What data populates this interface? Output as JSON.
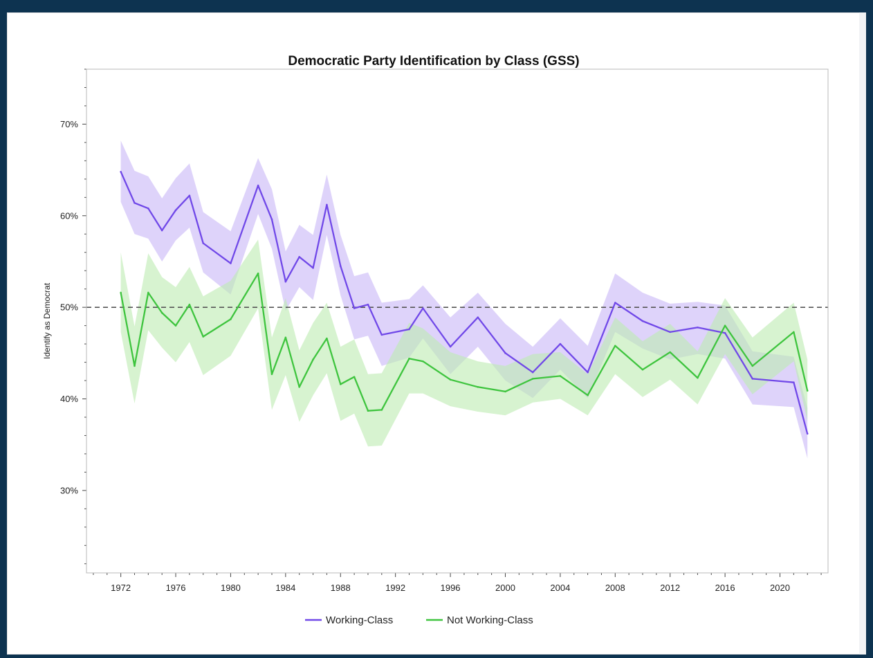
{
  "chart_data": {
    "type": "line",
    "title": "Democratic Party Identification by Class (GSS)",
    "xlabel": "",
    "ylabel": "Identify as Democrat",
    "xlim": [
      1969.5,
      2023.5
    ],
    "ylim": [
      21,
      76
    ],
    "xticks": [
      1972,
      1976,
      1980,
      1984,
      1988,
      1992,
      1996,
      2000,
      2004,
      2008,
      2012,
      2016,
      2020
    ],
    "yticks": [
      {
        "value": 30,
        "label": "30%"
      },
      {
        "value": 40,
        "label": "40%"
      },
      {
        "value": 50,
        "label": "50%"
      },
      {
        "value": 60,
        "label": "60%"
      },
      {
        "value": 70,
        "label": "70%"
      }
    ],
    "reference_line": {
      "y": 50,
      "style": "dashed",
      "color": "#555555"
    },
    "grid": false,
    "legend": {
      "placement": "bottom-center"
    },
    "series": [
      {
        "name": "Working-Class",
        "color": "#7048e8",
        "band_color": "#c9b8f7",
        "x": [
          1972,
          1973,
          1974,
          1975,
          1976,
          1977,
          1978,
          1980,
          1982,
          1983,
          1984,
          1985,
          1986,
          1987,
          1988,
          1989,
          1990,
          1991,
          1993,
          1994,
          1996,
          1998,
          2000,
          2002,
          2004,
          2006,
          2008,
          2010,
          2012,
          2014,
          2016,
          2018,
          2021,
          2022
        ],
        "values": [
          64.8,
          61.4,
          60.8,
          58.4,
          60.6,
          62.2,
          57.0,
          54.8,
          63.3,
          59.6,
          52.8,
          55.5,
          54.3,
          61.2,
          54.5,
          49.9,
          50.3,
          47.0,
          47.6,
          49.9,
          45.7,
          48.9,
          45.0,
          42.9,
          46.0,
          42.9,
          50.5,
          48.5,
          47.3,
          47.8,
          47.2,
          42.2,
          41.8,
          36.2
        ],
        "lower": [
          61.5,
          58.0,
          57.5,
          55.0,
          57.3,
          58.7,
          53.8,
          51.4,
          60.2,
          56.4,
          49.6,
          52.2,
          50.8,
          57.9,
          51.3,
          46.5,
          46.9,
          43.6,
          44.5,
          46.6,
          42.7,
          45.7,
          42.0,
          40.1,
          43.2,
          40.1,
          47.3,
          45.5,
          44.3,
          44.9,
          44.4,
          39.4,
          39.1,
          33.5
        ],
        "upper": [
          68.2,
          64.9,
          64.3,
          61.9,
          64.1,
          65.7,
          60.4,
          58.3,
          66.3,
          62.9,
          56.1,
          59.0,
          57.9,
          64.5,
          57.9,
          53.4,
          53.8,
          50.5,
          50.9,
          52.4,
          48.9,
          51.6,
          48.2,
          45.7,
          48.8,
          45.8,
          53.7,
          51.6,
          50.4,
          50.6,
          50.2,
          45.2,
          44.6,
          39.0
        ]
      },
      {
        "name": "Not Working-Class",
        "color": "#3ec43e",
        "band_color": "#bfecb3",
        "x": [
          1972,
          1973,
          1974,
          1975,
          1976,
          1977,
          1978,
          1980,
          1982,
          1983,
          1984,
          1985,
          1986,
          1987,
          1988,
          1989,
          1990,
          1991,
          1993,
          1994,
          1996,
          1998,
          2000,
          2002,
          2004,
          2006,
          2008,
          2010,
          2012,
          2014,
          2016,
          2018,
          2021,
          2022
        ],
        "values": [
          51.6,
          43.6,
          51.6,
          49.4,
          48.0,
          50.3,
          46.8,
          48.7,
          53.7,
          42.7,
          46.7,
          41.3,
          44.3,
          46.6,
          41.6,
          42.4,
          38.7,
          38.8,
          44.4,
          44.1,
          42.1,
          41.3,
          40.8,
          42.2,
          42.5,
          40.4,
          45.8,
          43.2,
          45.1,
          42.3,
          48.0,
          43.6,
          47.3,
          40.9
        ],
        "lower": [
          47.3,
          39.5,
          47.5,
          45.6,
          44.0,
          46.2,
          42.6,
          44.7,
          49.9,
          38.8,
          42.6,
          37.5,
          40.4,
          42.8,
          37.6,
          38.4,
          34.8,
          34.9,
          40.6,
          40.6,
          39.2,
          38.6,
          38.2,
          39.6,
          40.0,
          38.2,
          42.7,
          40.2,
          42.1,
          39.4,
          44.9,
          40.5,
          44.1,
          37.6
        ],
        "upper": [
          56.0,
          47.9,
          55.9,
          53.3,
          52.2,
          54.4,
          51.2,
          52.9,
          57.4,
          46.7,
          51.0,
          45.3,
          48.3,
          50.5,
          45.7,
          46.5,
          42.7,
          42.8,
          48.3,
          47.7,
          45.1,
          44.1,
          43.6,
          44.9,
          45.1,
          42.7,
          48.9,
          46.3,
          48.2,
          45.2,
          51.0,
          46.7,
          50.5,
          44.3
        ]
      }
    ]
  }
}
